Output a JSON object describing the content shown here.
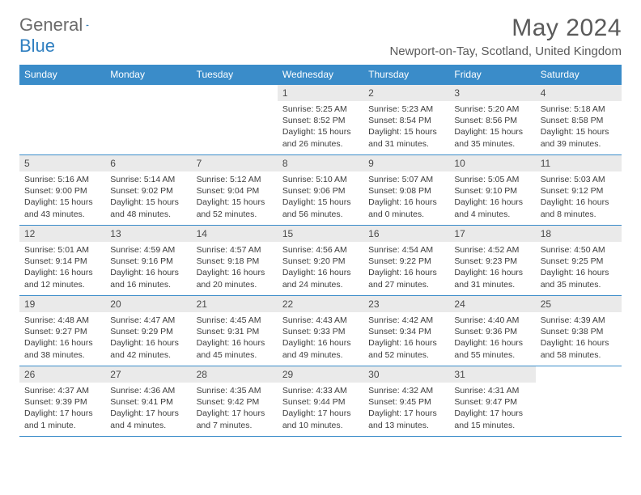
{
  "logo": {
    "text1": "General",
    "text2": "Blue"
  },
  "title": "May 2024",
  "location": "Newport-on-Tay, Scotland, United Kingdom",
  "colors": {
    "header_bg": "#3a8cc9",
    "header_text": "#ffffff",
    "daynum_bg": "#eaeaea",
    "border": "#3a8cc9",
    "text": "#3d3d3d",
    "logo_gray": "#6b6b6b",
    "logo_blue": "#2f7fc0"
  },
  "day_names": [
    "Sunday",
    "Monday",
    "Tuesday",
    "Wednesday",
    "Thursday",
    "Friday",
    "Saturday"
  ],
  "weeks": [
    [
      {
        "num": "",
        "sunrise": "",
        "sunset": "",
        "daylight": ""
      },
      {
        "num": "",
        "sunrise": "",
        "sunset": "",
        "daylight": ""
      },
      {
        "num": "",
        "sunrise": "",
        "sunset": "",
        "daylight": ""
      },
      {
        "num": "1",
        "sunrise": "Sunrise: 5:25 AM",
        "sunset": "Sunset: 8:52 PM",
        "daylight": "Daylight: 15 hours and 26 minutes."
      },
      {
        "num": "2",
        "sunrise": "Sunrise: 5:23 AM",
        "sunset": "Sunset: 8:54 PM",
        "daylight": "Daylight: 15 hours and 31 minutes."
      },
      {
        "num": "3",
        "sunrise": "Sunrise: 5:20 AM",
        "sunset": "Sunset: 8:56 PM",
        "daylight": "Daylight: 15 hours and 35 minutes."
      },
      {
        "num": "4",
        "sunrise": "Sunrise: 5:18 AM",
        "sunset": "Sunset: 8:58 PM",
        "daylight": "Daylight: 15 hours and 39 minutes."
      }
    ],
    [
      {
        "num": "5",
        "sunrise": "Sunrise: 5:16 AM",
        "sunset": "Sunset: 9:00 PM",
        "daylight": "Daylight: 15 hours and 43 minutes."
      },
      {
        "num": "6",
        "sunrise": "Sunrise: 5:14 AM",
        "sunset": "Sunset: 9:02 PM",
        "daylight": "Daylight: 15 hours and 48 minutes."
      },
      {
        "num": "7",
        "sunrise": "Sunrise: 5:12 AM",
        "sunset": "Sunset: 9:04 PM",
        "daylight": "Daylight: 15 hours and 52 minutes."
      },
      {
        "num": "8",
        "sunrise": "Sunrise: 5:10 AM",
        "sunset": "Sunset: 9:06 PM",
        "daylight": "Daylight: 15 hours and 56 minutes."
      },
      {
        "num": "9",
        "sunrise": "Sunrise: 5:07 AM",
        "sunset": "Sunset: 9:08 PM",
        "daylight": "Daylight: 16 hours and 0 minutes."
      },
      {
        "num": "10",
        "sunrise": "Sunrise: 5:05 AM",
        "sunset": "Sunset: 9:10 PM",
        "daylight": "Daylight: 16 hours and 4 minutes."
      },
      {
        "num": "11",
        "sunrise": "Sunrise: 5:03 AM",
        "sunset": "Sunset: 9:12 PM",
        "daylight": "Daylight: 16 hours and 8 minutes."
      }
    ],
    [
      {
        "num": "12",
        "sunrise": "Sunrise: 5:01 AM",
        "sunset": "Sunset: 9:14 PM",
        "daylight": "Daylight: 16 hours and 12 minutes."
      },
      {
        "num": "13",
        "sunrise": "Sunrise: 4:59 AM",
        "sunset": "Sunset: 9:16 PM",
        "daylight": "Daylight: 16 hours and 16 minutes."
      },
      {
        "num": "14",
        "sunrise": "Sunrise: 4:57 AM",
        "sunset": "Sunset: 9:18 PM",
        "daylight": "Daylight: 16 hours and 20 minutes."
      },
      {
        "num": "15",
        "sunrise": "Sunrise: 4:56 AM",
        "sunset": "Sunset: 9:20 PM",
        "daylight": "Daylight: 16 hours and 24 minutes."
      },
      {
        "num": "16",
        "sunrise": "Sunrise: 4:54 AM",
        "sunset": "Sunset: 9:22 PM",
        "daylight": "Daylight: 16 hours and 27 minutes."
      },
      {
        "num": "17",
        "sunrise": "Sunrise: 4:52 AM",
        "sunset": "Sunset: 9:23 PM",
        "daylight": "Daylight: 16 hours and 31 minutes."
      },
      {
        "num": "18",
        "sunrise": "Sunrise: 4:50 AM",
        "sunset": "Sunset: 9:25 PM",
        "daylight": "Daylight: 16 hours and 35 minutes."
      }
    ],
    [
      {
        "num": "19",
        "sunrise": "Sunrise: 4:48 AM",
        "sunset": "Sunset: 9:27 PM",
        "daylight": "Daylight: 16 hours and 38 minutes."
      },
      {
        "num": "20",
        "sunrise": "Sunrise: 4:47 AM",
        "sunset": "Sunset: 9:29 PM",
        "daylight": "Daylight: 16 hours and 42 minutes."
      },
      {
        "num": "21",
        "sunrise": "Sunrise: 4:45 AM",
        "sunset": "Sunset: 9:31 PM",
        "daylight": "Daylight: 16 hours and 45 minutes."
      },
      {
        "num": "22",
        "sunrise": "Sunrise: 4:43 AM",
        "sunset": "Sunset: 9:33 PM",
        "daylight": "Daylight: 16 hours and 49 minutes."
      },
      {
        "num": "23",
        "sunrise": "Sunrise: 4:42 AM",
        "sunset": "Sunset: 9:34 PM",
        "daylight": "Daylight: 16 hours and 52 minutes."
      },
      {
        "num": "24",
        "sunrise": "Sunrise: 4:40 AM",
        "sunset": "Sunset: 9:36 PM",
        "daylight": "Daylight: 16 hours and 55 minutes."
      },
      {
        "num": "25",
        "sunrise": "Sunrise: 4:39 AM",
        "sunset": "Sunset: 9:38 PM",
        "daylight": "Daylight: 16 hours and 58 minutes."
      }
    ],
    [
      {
        "num": "26",
        "sunrise": "Sunrise: 4:37 AM",
        "sunset": "Sunset: 9:39 PM",
        "daylight": "Daylight: 17 hours and 1 minute."
      },
      {
        "num": "27",
        "sunrise": "Sunrise: 4:36 AM",
        "sunset": "Sunset: 9:41 PM",
        "daylight": "Daylight: 17 hours and 4 minutes."
      },
      {
        "num": "28",
        "sunrise": "Sunrise: 4:35 AM",
        "sunset": "Sunset: 9:42 PM",
        "daylight": "Daylight: 17 hours and 7 minutes."
      },
      {
        "num": "29",
        "sunrise": "Sunrise: 4:33 AM",
        "sunset": "Sunset: 9:44 PM",
        "daylight": "Daylight: 17 hours and 10 minutes."
      },
      {
        "num": "30",
        "sunrise": "Sunrise: 4:32 AM",
        "sunset": "Sunset: 9:45 PM",
        "daylight": "Daylight: 17 hours and 13 minutes."
      },
      {
        "num": "31",
        "sunrise": "Sunrise: 4:31 AM",
        "sunset": "Sunset: 9:47 PM",
        "daylight": "Daylight: 17 hours and 15 minutes."
      },
      {
        "num": "",
        "sunrise": "",
        "sunset": "",
        "daylight": ""
      }
    ]
  ]
}
